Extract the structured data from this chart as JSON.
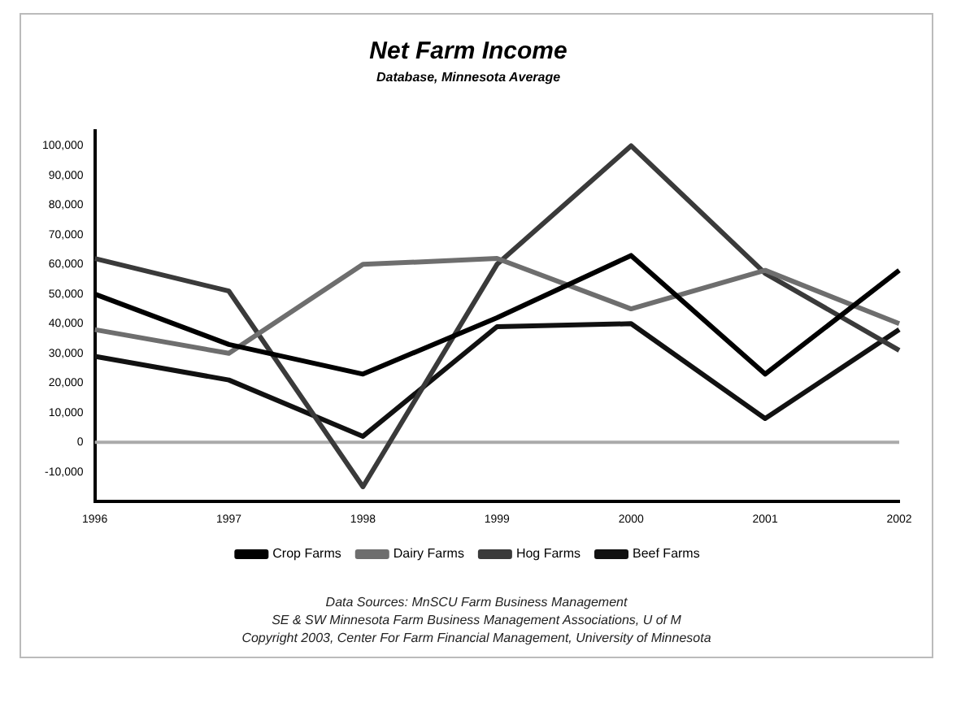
{
  "chart_data": {
    "type": "line",
    "title": "Net Farm Income",
    "subtitle": "Database, Minnesota Average",
    "categories": [
      "1996",
      "1997",
      "1998",
      "1999",
      "2000",
      "2001",
      "2002"
    ],
    "series": [
      {
        "name": "Crop Farms",
        "color": "#000000",
        "values": [
          50000,
          33000,
          23000,
          42000,
          63000,
          23000,
          58000
        ]
      },
      {
        "name": "Dairy Farms",
        "color": "#6e6e6e",
        "values": [
          38000,
          30000,
          60000,
          62000,
          45000,
          58000,
          40000
        ]
      },
      {
        "name": "Hog Farms",
        "color": "#3a3a3a",
        "values": [
          62000,
          51000,
          -15000,
          60000,
          100000,
          57000,
          31000
        ]
      },
      {
        "name": "Beef Farms",
        "color": "#111111",
        "values": [
          29000,
          21000,
          2000,
          39000,
          40000,
          8000,
          38000
        ]
      }
    ],
    "ylim": [
      -20000,
      105000
    ],
    "yticks": [
      {
        "value": -10000,
        "label": "-10,000"
      },
      {
        "value": 0,
        "label": "0"
      },
      {
        "value": 10000,
        "label": "10,000"
      },
      {
        "value": 20000,
        "label": "20,000"
      },
      {
        "value": 30000,
        "label": "30,000"
      },
      {
        "value": 40000,
        "label": "40,000"
      },
      {
        "value": 50000,
        "label": "50,000"
      },
      {
        "value": 60000,
        "label": "60,000"
      },
      {
        "value": 70000,
        "label": "70,000"
      },
      {
        "value": 80000,
        "label": "80,000"
      },
      {
        "value": 90000,
        "label": "90,000"
      },
      {
        "value": 100000,
        "label": "100,000"
      }
    ],
    "ref_lines": [
      {
        "axis": "y",
        "value": 0,
        "color": "#aaaaaa"
      }
    ],
    "grid": false,
    "legend": "bottom",
    "marker": "none",
    "line_style": "solid",
    "annotations": [
      "Data Sources:  MnSCU Farm Business Management",
      "SE & SW Minnesota Farm Business Management Associations, U of M",
      "Copyright 2003, Center For Farm Financial Management, University of Minnesota"
    ]
  }
}
